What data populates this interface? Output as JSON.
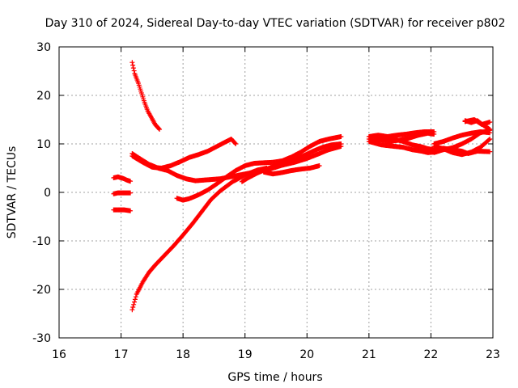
{
  "chart_data": {
    "type": "scatter",
    "title": "Day 310 of 2024, Sidereal Day-to-day VTEC variation (SDTVAR) for receiver p802",
    "xlabel": "GPS time / hours",
    "ylabel": "SDTVAR / TECUs",
    "xlim": [
      16,
      23
    ],
    "ylim": [
      -30,
      30
    ],
    "xticks": [
      16,
      17,
      18,
      19,
      20,
      21,
      22,
      23
    ],
    "yticks": [
      -30,
      -20,
      -10,
      0,
      10,
      20,
      30
    ],
    "grid": true,
    "marker": "+",
    "color": "#ff0000",
    "series": [
      {
        "points": [
          [
            16.88,
            3.0
          ],
          [
            16.95,
            3.2
          ],
          [
            17.03,
            2.9
          ],
          [
            17.1,
            2.5
          ],
          [
            17.15,
            2.3
          ]
        ]
      },
      {
        "points": [
          [
            16.88,
            -0.3
          ],
          [
            16.95,
            -0.1
          ],
          [
            17.05,
            -0.1
          ],
          [
            17.15,
            -0.1
          ]
        ]
      },
      {
        "points": [
          [
            16.88,
            -3.6
          ],
          [
            16.95,
            -3.6
          ],
          [
            17.05,
            -3.6
          ],
          [
            17.15,
            -3.8
          ]
        ]
      },
      {
        "points": [
          [
            17.18,
            26.8
          ],
          [
            17.22,
            24.5
          ],
          [
            17.28,
            22.5
          ],
          [
            17.33,
            20.5
          ],
          [
            17.38,
            18.5
          ],
          [
            17.43,
            16.8
          ],
          [
            17.5,
            15.2
          ],
          [
            17.55,
            14.0
          ],
          [
            17.62,
            13.0
          ]
        ]
      },
      {
        "points": [
          [
            17.18,
            -24.2
          ],
          [
            17.25,
            -21.0
          ],
          [
            17.35,
            -18.5
          ],
          [
            17.45,
            -16.5
          ],
          [
            17.55,
            -15.0
          ],
          [
            17.7,
            -13.0
          ],
          [
            17.85,
            -11.0
          ],
          [
            18.0,
            -8.8
          ],
          [
            18.15,
            -6.5
          ],
          [
            18.3,
            -4.0
          ],
          [
            18.45,
            -1.5
          ],
          [
            18.6,
            0.3
          ],
          [
            18.8,
            2.2
          ],
          [
            19.0,
            3.6
          ],
          [
            19.2,
            4.6
          ],
          [
            19.35,
            5.0
          ]
        ]
      },
      {
        "points": [
          [
            17.18,
            8.0
          ],
          [
            17.3,
            7.0
          ],
          [
            17.45,
            5.8
          ],
          [
            17.6,
            5.0
          ],
          [
            17.75,
            4.5
          ],
          [
            17.9,
            3.5
          ],
          [
            18.05,
            2.8
          ],
          [
            18.2,
            2.4
          ],
          [
            18.4,
            2.6
          ],
          [
            18.6,
            2.8
          ],
          [
            18.8,
            3.3
          ],
          [
            19.0,
            3.8
          ],
          [
            19.2,
            4.3
          ],
          [
            19.4,
            4.8
          ],
          [
            19.6,
            5.6
          ],
          [
            19.8,
            6.2
          ],
          [
            20.0,
            7.0
          ],
          [
            20.2,
            8.0
          ],
          [
            20.35,
            8.8
          ],
          [
            20.55,
            9.5
          ]
        ]
      },
      {
        "points": [
          [
            17.18,
            7.5
          ],
          [
            17.35,
            6.2
          ],
          [
            17.5,
            5.2
          ],
          [
            17.65,
            5.0
          ],
          [
            17.8,
            5.5
          ],
          [
            17.95,
            6.3
          ],
          [
            18.1,
            7.2
          ],
          [
            18.25,
            7.8
          ],
          [
            18.4,
            8.5
          ],
          [
            18.55,
            9.5
          ],
          [
            18.7,
            10.5
          ],
          [
            18.78,
            11.0
          ],
          [
            18.85,
            10.0
          ]
        ]
      },
      {
        "points": [
          [
            17.9,
            -1.2
          ],
          [
            18.0,
            -1.6
          ],
          [
            18.1,
            -1.3
          ],
          [
            18.25,
            -0.5
          ],
          [
            18.4,
            0.5
          ],
          [
            18.55,
            1.8
          ],
          [
            18.7,
            3.2
          ],
          [
            18.85,
            4.5
          ],
          [
            19.0,
            5.5
          ],
          [
            19.15,
            6.0
          ],
          [
            19.3,
            6.1
          ],
          [
            19.45,
            6.2
          ],
          [
            19.6,
            6.5
          ],
          [
            19.75,
            7.3
          ],
          [
            19.9,
            8.3
          ],
          [
            20.05,
            9.5
          ],
          [
            20.2,
            10.5
          ],
          [
            20.35,
            11.0
          ],
          [
            20.55,
            11.5
          ]
        ]
      },
      {
        "points": [
          [
            18.95,
            2.2
          ],
          [
            19.05,
            3.0
          ],
          [
            19.2,
            4.0
          ],
          [
            19.35,
            4.8
          ],
          [
            19.5,
            5.6
          ],
          [
            19.65,
            6.0
          ],
          [
            19.8,
            6.8
          ],
          [
            19.95,
            7.6
          ],
          [
            20.1,
            8.5
          ],
          [
            20.25,
            9.3
          ],
          [
            20.4,
            9.8
          ],
          [
            20.55,
            10.0
          ]
        ]
      },
      {
        "points": [
          [
            19.3,
            4.2
          ],
          [
            19.45,
            3.8
          ],
          [
            19.6,
            4.1
          ],
          [
            19.75,
            4.5
          ],
          [
            19.9,
            4.8
          ],
          [
            20.05,
            5.0
          ],
          [
            20.2,
            5.5
          ]
        ]
      },
      {
        "points": [
          [
            21.0,
            11.5
          ],
          [
            21.15,
            11.8
          ],
          [
            21.3,
            11.5
          ],
          [
            21.45,
            11.8
          ],
          [
            21.6,
            12.0
          ],
          [
            21.75,
            12.3
          ],
          [
            21.9,
            12.5
          ],
          [
            22.05,
            12.5
          ]
        ]
      },
      {
        "points": [
          [
            21.0,
            11.0
          ],
          [
            21.2,
            10.8
          ],
          [
            21.35,
            10.5
          ],
          [
            21.5,
            10.8
          ],
          [
            21.65,
            11.2
          ],
          [
            21.8,
            11.8
          ],
          [
            21.95,
            12.2
          ],
          [
            22.05,
            12.0
          ]
        ]
      },
      {
        "points": [
          [
            21.0,
            10.5
          ],
          [
            21.2,
            9.8
          ],
          [
            21.4,
            9.5
          ],
          [
            21.55,
            9.3
          ],
          [
            21.7,
            8.8
          ],
          [
            21.85,
            8.5
          ],
          [
            21.95,
            8.2
          ],
          [
            22.05,
            8.3
          ]
        ]
      },
      {
        "points": [
          [
            21.1,
            10.8
          ],
          [
            21.25,
            11.3
          ],
          [
            21.4,
            11.0
          ],
          [
            21.55,
            10.5
          ],
          [
            21.7,
            9.8
          ],
          [
            21.85,
            9.4
          ],
          [
            21.95,
            9.0
          ],
          [
            22.05,
            8.8
          ]
        ]
      },
      {
        "points": [
          [
            22.05,
            8.2
          ],
          [
            22.2,
            8.8
          ],
          [
            22.35,
            9.2
          ],
          [
            22.5,
            10.0
          ],
          [
            22.65,
            11.0
          ],
          [
            22.8,
            12.3
          ],
          [
            22.95,
            12.8
          ]
        ]
      },
      {
        "points": [
          [
            22.05,
            9.0
          ],
          [
            22.2,
            9.1
          ],
          [
            22.35,
            8.8
          ],
          [
            22.5,
            8.5
          ],
          [
            22.6,
            8.0
          ],
          [
            22.75,
            8.5
          ],
          [
            22.95,
            8.4
          ]
        ]
      },
      {
        "points": [
          [
            22.05,
            10.0
          ],
          [
            22.2,
            10.5
          ],
          [
            22.35,
            11.2
          ],
          [
            22.5,
            11.8
          ],
          [
            22.65,
            12.2
          ],
          [
            22.8,
            12.5
          ],
          [
            22.95,
            12.3
          ]
        ]
      },
      {
        "points": [
          [
            22.05,
            9.5
          ],
          [
            22.2,
            9.0
          ],
          [
            22.35,
            8.2
          ],
          [
            22.5,
            7.8
          ],
          [
            22.65,
            8.3
          ],
          [
            22.8,
            9.3
          ],
          [
            22.95,
            11.0
          ]
        ]
      },
      {
        "points": [
          [
            22.55,
            14.6
          ],
          [
            22.7,
            15.0
          ],
          [
            22.82,
            14.0
          ],
          [
            22.95,
            14.5
          ]
        ]
      },
      {
        "points": [
          [
            22.55,
            14.8
          ],
          [
            22.65,
            14.4
          ],
          [
            22.75,
            14.8
          ],
          [
            22.85,
            13.8
          ],
          [
            22.95,
            13.0
          ]
        ]
      }
    ]
  }
}
